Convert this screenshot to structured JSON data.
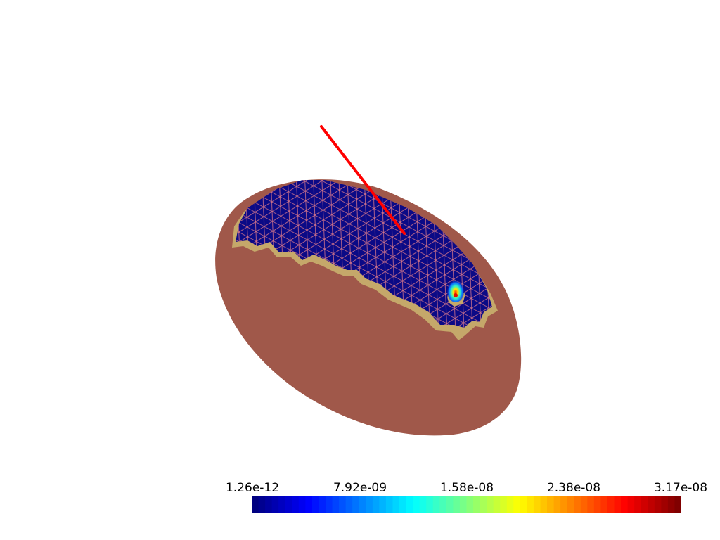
{
  "scene": {
    "colors": {
      "background": "#ffffff",
      "body": "#a0584a",
      "rim": "#c5a86a",
      "surface": "#0b0a86",
      "mesh_edge": "#d4758a",
      "probe_line": "#ff0000"
    }
  },
  "colorbar": {
    "colormap": "jet",
    "ticks": [
      "1.26e-12",
      "7.92e-09",
      "1.58e-08",
      "2.38e-08",
      "3.17e-08"
    ]
  }
}
